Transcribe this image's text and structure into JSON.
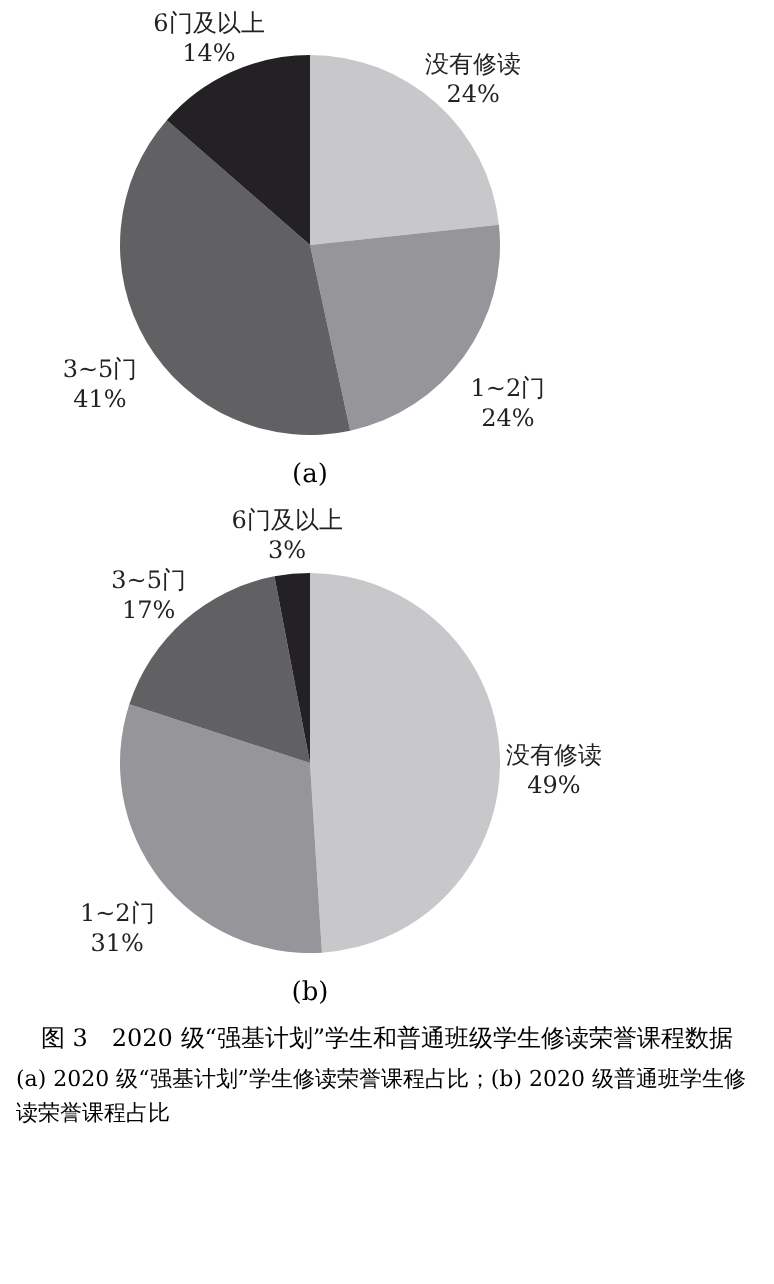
{
  "chart_data": [
    {
      "type": "pie",
      "title": "(a)",
      "categories": [
        "没有修读",
        "1~2门",
        "3~5门",
        "6门及以上"
      ],
      "values": [
        24,
        24,
        41,
        14
      ],
      "value_labels": [
        "24%",
        "24%",
        "41%",
        "14%"
      ],
      "colors": [
        "#c8c8ca",
        "#96969a",
        "#616163",
        "#232123"
      ]
    },
    {
      "type": "pie",
      "title": "(b)",
      "categories": [
        "没有修读",
        "1~2门",
        "3~5门",
        "6门及以上"
      ],
      "values": [
        49,
        31,
        17,
        3
      ],
      "value_labels": [
        "49%",
        "31%",
        "17%",
        "3%"
      ],
      "colors": [
        "#c8c8ca",
        "#96969a",
        "#616163",
        "#232123"
      ],
      "annotations": [
        "图 3　2020 级“强基计划”学生和普通班级学生修读荣誉课程数据",
        "(a) 2020 级“强基计划”学生修读荣誉课程占比；(b) 2020 级普通班学生修读荣誉课程占比"
      ]
    }
  ]
}
